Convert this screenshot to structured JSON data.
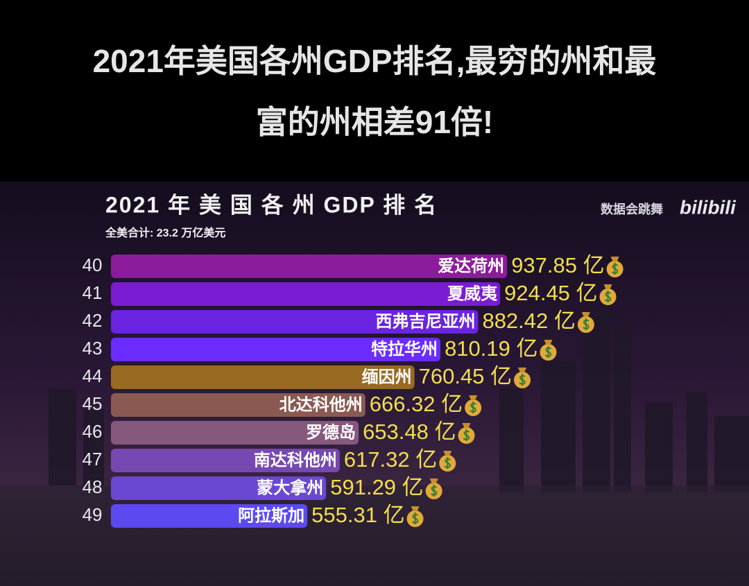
{
  "headline": "2021年美国各州GDP排名,最穷的州和最富的州相差91倍!",
  "headline_lines": [
    "2021年美国各州GDP排名,最穷的州和最",
    "富的州相差91倍!"
  ],
  "watermark": "数据会跳舞",
  "logo": "bilibili",
  "chart_data": {
    "type": "bar",
    "title": "2021 年 美 国 各 州 GDP 排 名",
    "subtitle": "全美合计: 23.2 万亿美元",
    "ranks": [
      40,
      41,
      42,
      43,
      44,
      45,
      46,
      47,
      48,
      49
    ],
    "categories": [
      "爱达荷州",
      "夏威夷",
      "西弗吉尼亚州",
      "特拉华州",
      "缅因州",
      "北达科他州",
      "罗德岛",
      "南达科他州",
      "蒙大拿州",
      "阿拉斯加"
    ],
    "values": [
      937.85,
      924.45,
      882.42,
      810.19,
      760.45,
      666.32,
      653.48,
      617.32,
      591.29,
      555.31
    ],
    "value_labels": [
      "937.85 亿",
      "924.45 亿",
      "882.42 亿",
      "810.19 亿",
      "760.45 亿",
      "666.32 亿",
      "653.48 亿",
      "617.32 亿",
      "591.29 亿",
      "555.31 亿"
    ],
    "colors": [
      "#8c1c9c",
      "#7a1cd2",
      "#6a24e2",
      "#6b2cff",
      "#986a22",
      "#8a5a52",
      "#87587e",
      "#7648b2",
      "#6a48d2",
      "#5c4af0"
    ]
  }
}
